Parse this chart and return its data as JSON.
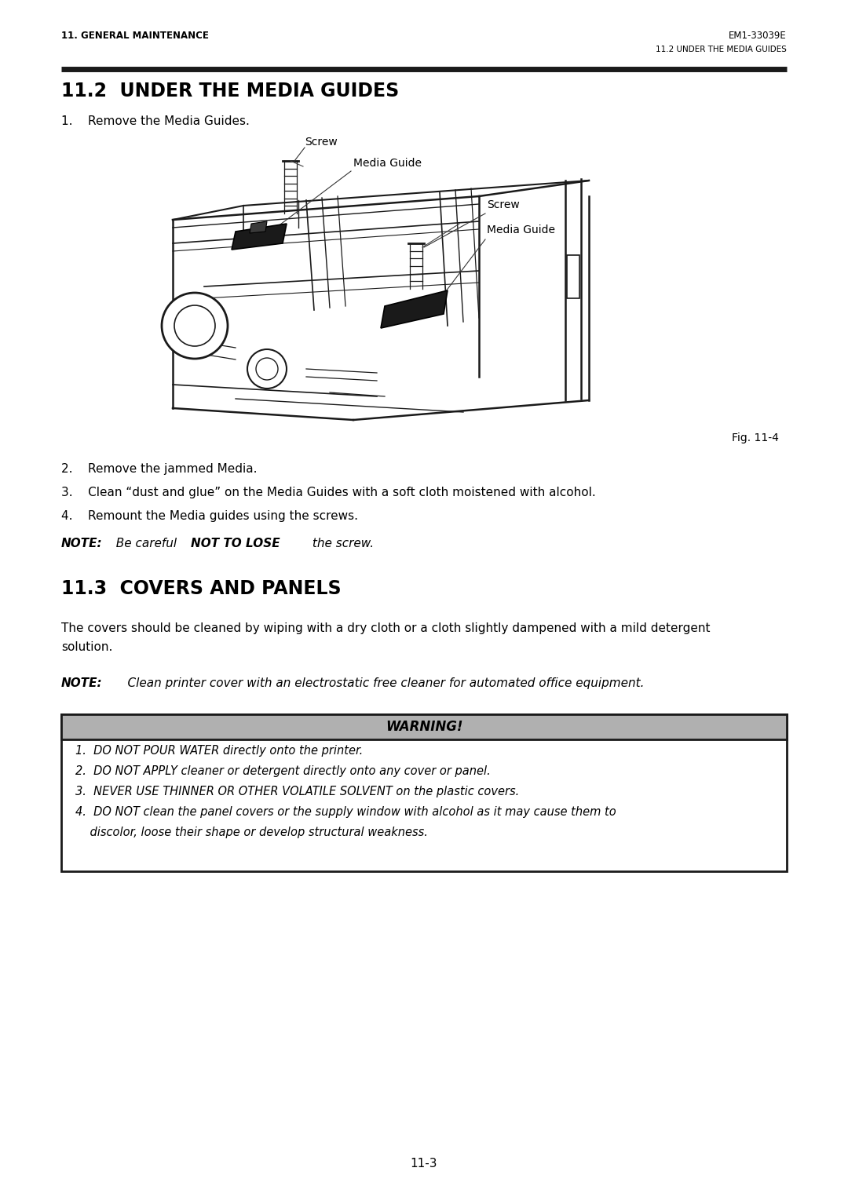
{
  "page_bg": "#ffffff",
  "header_left": "11. GENERAL MAINTENANCE",
  "header_right": "EM1-33039E",
  "header_right2": "11.2 UNDER THE MEDIA GUIDES",
  "section_title": "11.2  UNDER THE MEDIA GUIDES",
  "step1": "1.    Remove the Media Guides.",
  "fig_label": "Fig. 11-4",
  "label_screw1": "Screw",
  "label_media_guide1": "Media Guide",
  "label_screw2": "Screw",
  "label_media_guide2": "Media Guide",
  "step2": "2.    Remove the jammed Media.",
  "step3": "3.    Clean “dust and glue” on the Media Guides with a soft cloth moistened with alcohol.",
  "step4": "4.    Remount the Media guides using the screws.",
  "note1_note": "NOTE:",
  "note1_mid": "  Be careful ",
  "note1_bold": "NOT TO LOSE",
  "note1_end": " the screw.",
  "section2_title": "11.3  COVERS AND PANELS",
  "para1_line1": "The covers should be cleaned by wiping with a dry cloth or a cloth slightly dampened with a mild detergent",
  "para1_line2": "solution.",
  "note2_label": "NOTE:",
  "note2_text": "    Clean printer cover with an electrostatic free cleaner for automated office equipment.",
  "warning_title": "WARNING!",
  "warning_item1": "1.  DO NOT POUR WATER directly onto the printer.",
  "warning_item2": "2.  DO NOT APPLY cleaner or detergent directly onto any cover or panel.",
  "warning_item3": "3.  NEVER USE THINNER OR OTHER VOLATILE SOLVENT on the plastic covers.",
  "warning_item4a": "4.  DO NOT clean the panel covers or the supply window with alcohol as it may cause them to",
  "warning_item4b": "    discolor, loose their shape or develop structural weakness.",
  "page_num": "11-3",
  "font_color": "#000000"
}
